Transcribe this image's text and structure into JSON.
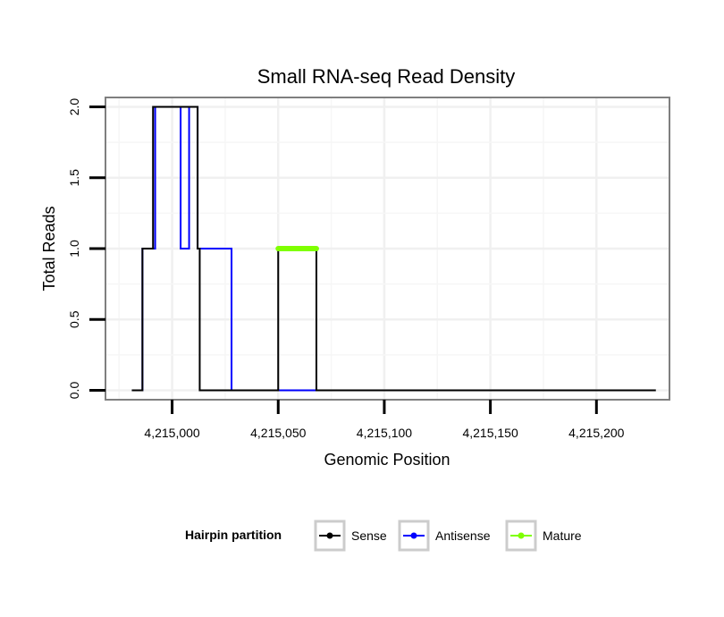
{
  "chart_data": {
    "type": "line",
    "title": "Small RNA-seq Read Density",
    "xlabel": "Genomic Position",
    "ylabel": "Total Reads",
    "xlim": [
      4214969,
      4215234
    ],
    "ylim": [
      -0.06,
      2.06
    ],
    "x_ticks": [
      4215000,
      4215050,
      4215100,
      4215150,
      4215200
    ],
    "x_tick_labels": [
      "4,215,000",
      "4,215,050",
      "4,215,100",
      "4,215,150",
      "4,215,200"
    ],
    "y_ticks": [
      0.0,
      0.5,
      1.0,
      1.5,
      2.0
    ],
    "y_tick_labels": [
      "0.0",
      "0.5",
      "1.0",
      "1.5",
      "2.0"
    ],
    "grid": true,
    "legend": {
      "title": "Hairpin partition",
      "position": "bottom",
      "entries": [
        "Sense",
        "Antisense",
        "Mature"
      ]
    },
    "series": [
      {
        "name": "Sense",
        "color": "#000000",
        "points": [
          [
            4214981,
            0
          ],
          [
            4214986,
            0
          ],
          [
            4214986,
            1
          ],
          [
            4214991,
            1
          ],
          [
            4214991,
            2
          ],
          [
            4215009,
            2
          ],
          [
            4215009,
            2
          ],
          [
            4215012,
            2
          ],
          [
            4215012,
            1
          ],
          [
            4215013,
            1
          ],
          [
            4215013,
            0
          ],
          [
            4215050,
            0
          ],
          [
            4215050,
            1
          ],
          [
            4215068,
            1
          ],
          [
            4215068,
            0
          ],
          [
            4215228,
            0
          ]
        ]
      },
      {
        "name": "Antisense",
        "color": "#0000ff",
        "points": [
          [
            4214981,
            0
          ],
          [
            4214986,
            0
          ],
          [
            4214986,
            1
          ],
          [
            4214992,
            1
          ],
          [
            4214992,
            2
          ],
          [
            4215004,
            2
          ],
          [
            4215004,
            1
          ],
          [
            4215008,
            1
          ],
          [
            4215008,
            2
          ],
          [
            4215012,
            2
          ],
          [
            4215012,
            1
          ],
          [
            4215028,
            1
          ],
          [
            4215028,
            0
          ],
          [
            4215068,
            0
          ]
        ]
      },
      {
        "name": "Mature",
        "color": "#7fff00",
        "points": [
          [
            4215050,
            1
          ],
          [
            4215068,
            1
          ]
        ]
      }
    ]
  }
}
